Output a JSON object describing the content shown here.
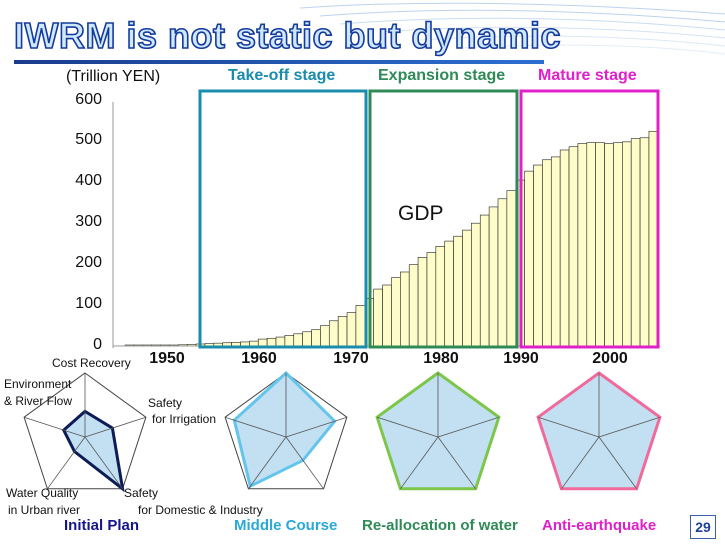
{
  "title": "IWRM is not static but dynamic",
  "unit_label": "(Trillion YEN)",
  "stages": [
    {
      "label": "Take-off stage",
      "color": "#1a8cae"
    },
    {
      "label": "Expansion stage",
      "color": "#2e8b57"
    },
    {
      "label": "Mature stage",
      "color": "#e020c8"
    }
  ],
  "page_number": "29",
  "chart_data": {
    "type": "bar",
    "series_label": "GDP",
    "ylim": [
      0,
      600
    ],
    "yticks": [
      "0",
      "100",
      "200",
      "300",
      "400",
      "500",
      "600"
    ],
    "xticks": [
      "1950",
      "1960",
      "1970",
      "1980",
      "1990",
      "2000"
    ],
    "bar_color": "#fefcc8",
    "x": [
      1946,
      1947,
      1948,
      1949,
      1950,
      1951,
      1952,
      1953,
      1954,
      1955,
      1956,
      1957,
      1958,
      1959,
      1960,
      1961,
      1962,
      1963,
      1964,
      1965,
      1966,
      1967,
      1968,
      1969,
      1970,
      1971,
      1972,
      1973,
      1974,
      1975,
      1976,
      1977,
      1978,
      1979,
      1980,
      1981,
      1982,
      1983,
      1984,
      1985,
      1986,
      1987,
      1988,
      1989,
      1990,
      1991,
      1992,
      1993,
      1994,
      1995,
      1996,
      1997,
      1998,
      1999,
      2000,
      2001,
      2002,
      2003,
      2004,
      2005
    ],
    "values": [
      1,
      1,
      1,
      1,
      2,
      2,
      3,
      4,
      5,
      6,
      7,
      8,
      9,
      10,
      12,
      17,
      19,
      22,
      26,
      30,
      35,
      40,
      50,
      62,
      73,
      82,
      100,
      117,
      140,
      150,
      168,
      182,
      200,
      218,
      230,
      245,
      258,
      270,
      285,
      302,
      322,
      342,
      362,
      382,
      408,
      430,
      445,
      458,
      465,
      482,
      490,
      498,
      500,
      500,
      498,
      500,
      502,
      510,
      512,
      528
    ]
  },
  "radars": [
    {
      "caption": "Initial Plan",
      "caption_color": "#16168c",
      "stroke": "#0d1c56",
      "fill": "#b9dbf0",
      "values": [
        0.4,
        0.45,
        1.0,
        0.28,
        0.35
      ],
      "labels": {
        "top": "Cost Recovery",
        "upper_right": [
          "Safety",
          "for Irrigation"
        ],
        "lower_right": [
          "Safety",
          "for Domestic & Industry"
        ],
        "lower_left": [
          "Water Quality",
          "in Urban river"
        ],
        "upper_left": [
          "Environment",
          "& River Flow"
        ]
      }
    },
    {
      "caption": "Middle Course",
      "caption_color": "#2aa9d6",
      "stroke": "#63c4ec",
      "fill": "#b9dbf0",
      "values": [
        1.0,
        0.8,
        0.45,
        0.95,
        0.85
      ]
    },
    {
      "caption": "Re-allocation of water",
      "caption_color": "#2e8b57",
      "stroke": "#7cc64a",
      "fill": "#b9dbf0",
      "values": [
        1.0,
        1.0,
        1.0,
        1.0,
        1.0
      ]
    },
    {
      "caption": "Anti-earthquake",
      "caption_color": "#e020c8",
      "stroke": "#f06a9c",
      "fill": "#b9dbf0",
      "values": [
        1.0,
        1.0,
        1.0,
        1.0,
        1.0
      ]
    }
  ]
}
